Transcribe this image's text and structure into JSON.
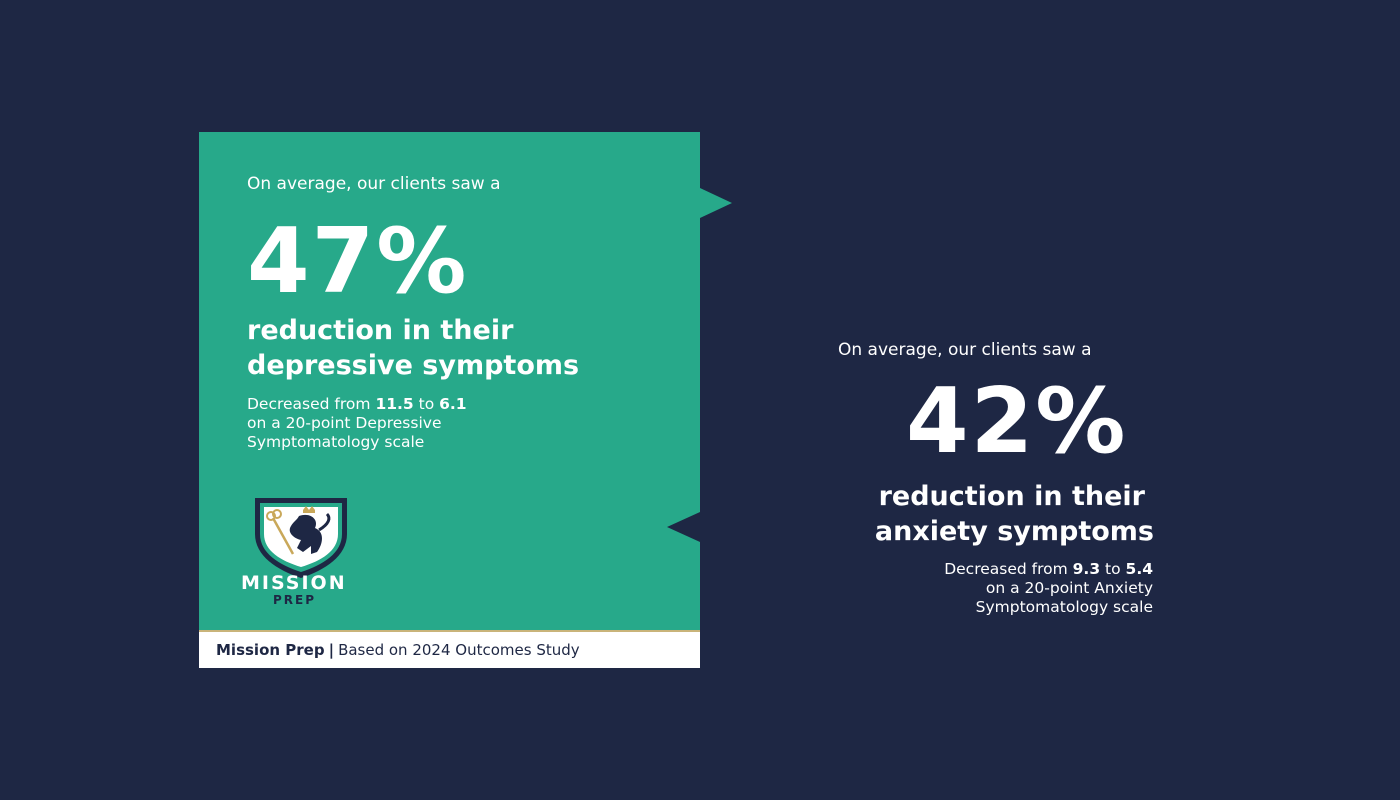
{
  "colors": {
    "background": "#1e2744",
    "card": "#27a98a",
    "footer_rule": "#c9b47a"
  },
  "depression": {
    "intro": "On average, our clients saw a",
    "percent": "47%",
    "headline_line1": "reduction in their",
    "headline_line2": "depressive symptoms",
    "detail_prefix": "Decreased from ",
    "from": "11.5",
    "to_word": " to ",
    "to": "6.1",
    "detail_line2": "on a 20-point Depressive",
    "detail_line3": "Symptomatology scale"
  },
  "anxiety": {
    "intro": "On average, our clients saw a",
    "percent": "42%",
    "headline_line1": "reduction in their",
    "headline_line2": "anxiety symptoms",
    "detail_prefix": "Decreased from ",
    "from": "9.3",
    "to_word": " to ",
    "to": "5.4",
    "detail_line2": "on a 20-point Anxiety",
    "detail_line3": "Symptomatology scale"
  },
  "logo": {
    "line1": "MISSION",
    "line2": "PREP",
    "icon": "shield-lion-key-icon"
  },
  "footer": {
    "brand": "Mission Prep",
    "separator": "|",
    "source": "Based on 2024 Outcomes Study"
  }
}
